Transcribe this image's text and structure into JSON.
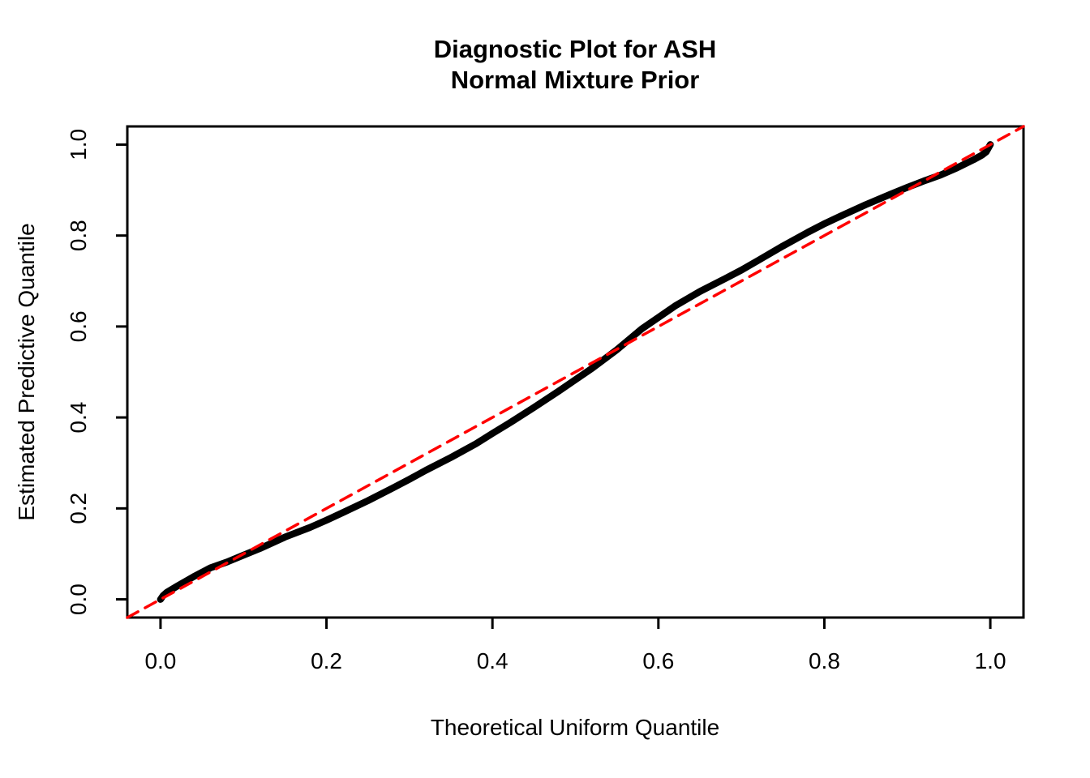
{
  "figure": {
    "title_line1": "Diagnostic Plot for ASH",
    "title_line2": "Normal Mixture Prior",
    "x_axis_label": "Theoretical Uniform Quantile",
    "y_axis_label": "Estimated Predictive Quantile"
  },
  "colors": {
    "background": "#FFFFFF",
    "text": "#000000",
    "quantile_curve": "#000000",
    "reference_line": "#FF0000",
    "plot_border": "#000000"
  },
  "chart_data": {
    "type": "line",
    "title": "Diagnostic Plot for ASH\nNormal Mixture Prior",
    "xlabel": "Theoretical Uniform Quantile",
    "ylabel": "Estimated Predictive Quantile",
    "xlim": [
      -0.04,
      1.04
    ],
    "ylim": [
      -0.04,
      1.04
    ],
    "grid": false,
    "legend": null,
    "x_tick_values": [
      0.0,
      0.2,
      0.4,
      0.6,
      0.8,
      1.0
    ],
    "x_tick_labels": [
      "0.0",
      "0.2",
      "0.4",
      "0.6",
      "0.8",
      "1.0"
    ],
    "y_tick_values": [
      0.0,
      0.2,
      0.4,
      0.6,
      0.8,
      1.0
    ],
    "y_tick_labels": [
      "0.0",
      "0.2",
      "0.4",
      "0.6",
      "0.8",
      "1.0"
    ],
    "series": [
      {
        "name": "estimated-predictive-quantile-curve",
        "color": "#000000",
        "line_width": 8.5,
        "dash": null,
        "x": [
          0.0,
          0.003,
          0.008,
          0.02,
          0.04,
          0.06,
          0.08,
          0.1,
          0.12,
          0.15,
          0.18,
          0.2,
          0.22,
          0.25,
          0.28,
          0.3,
          0.32,
          0.35,
          0.38,
          0.4,
          0.42,
          0.45,
          0.48,
          0.5,
          0.52,
          0.55,
          0.58,
          0.6,
          0.62,
          0.65,
          0.68,
          0.7,
          0.72,
          0.75,
          0.78,
          0.8,
          0.82,
          0.85,
          0.88,
          0.9,
          0.92,
          0.94,
          0.96,
          0.98,
          0.99,
          0.995,
          1.0
        ],
        "y": [
          0.0,
          0.008,
          0.016,
          0.029,
          0.05,
          0.069,
          0.082,
          0.097,
          0.112,
          0.137,
          0.158,
          0.174,
          0.191,
          0.217,
          0.245,
          0.264,
          0.284,
          0.312,
          0.342,
          0.365,
          0.387,
          0.422,
          0.458,
          0.483,
          0.508,
          0.549,
          0.595,
          0.62,
          0.645,
          0.677,
          0.705,
          0.724,
          0.745,
          0.777,
          0.807,
          0.826,
          0.843,
          0.868,
          0.891,
          0.906,
          0.92,
          0.933,
          0.949,
          0.967,
          0.977,
          0.984,
          1.0
        ]
      },
      {
        "name": "diagonal-reference-line",
        "color": "#FF0000",
        "line_width": 3.5,
        "dash": [
          15,
          10
        ],
        "x": [
          -0.04,
          1.04
        ],
        "y": [
          -0.04,
          1.04
        ]
      }
    ]
  }
}
